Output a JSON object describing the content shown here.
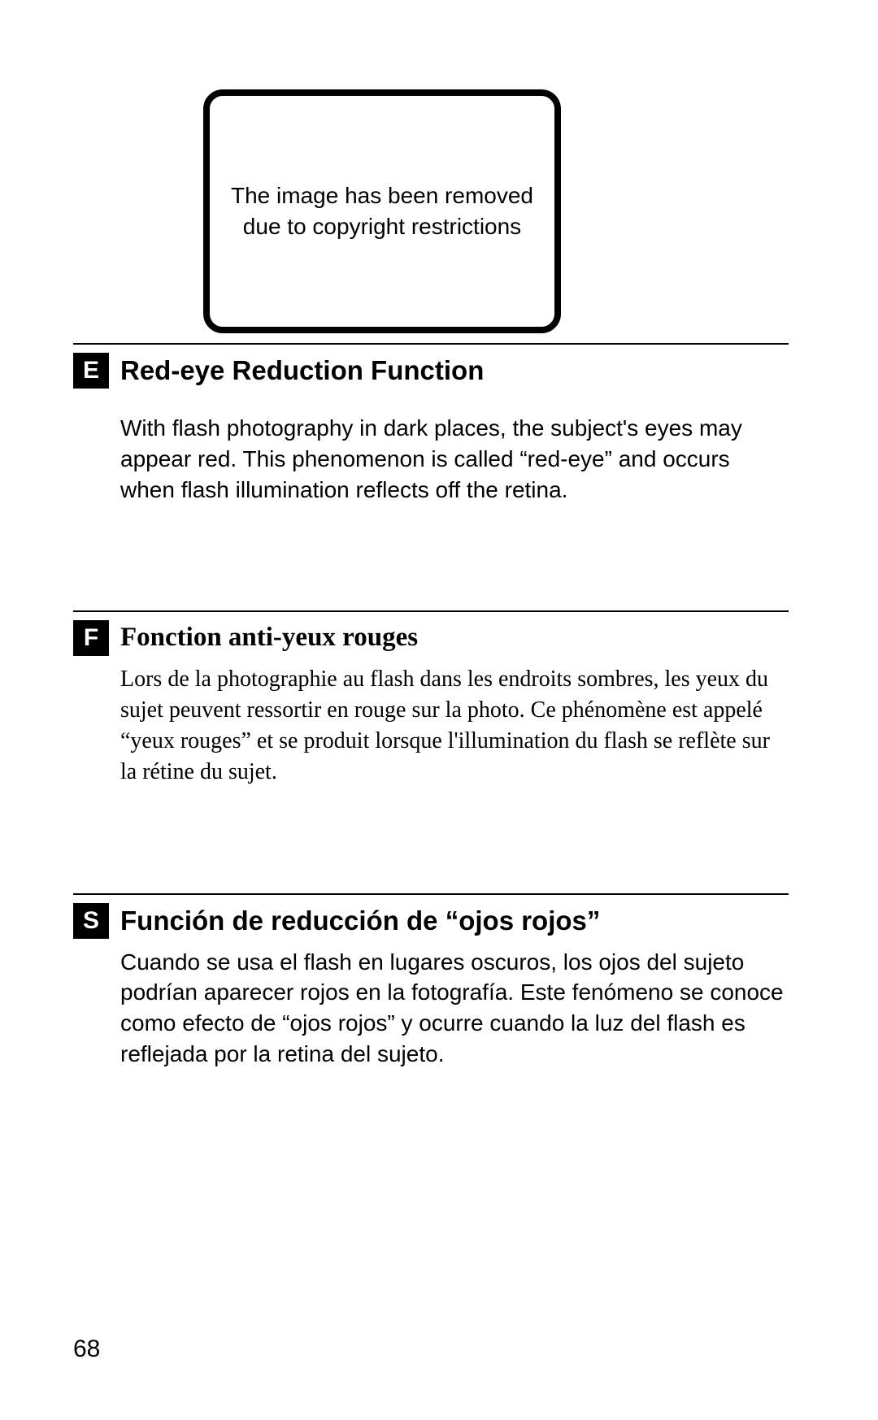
{
  "placeholder_text": "The image has been removed due to copyright restrictions",
  "sections": [
    {
      "lang_letter": "E",
      "title": "Red-eye Reduction Function",
      "body": "With flash photography in dark places, the subject's eyes may appear red. This phenomenon is called “red-eye” and occurs when flash illumination reflects off the retina.",
      "serif": false
    },
    {
      "lang_letter": "F",
      "title": "Fonction anti-yeux rouges",
      "body": "Lors de la photographie au flash dans les endroits sombres, les yeux du sujet peuvent ressortir en rouge sur la photo. Ce phénomène est appelé “yeux rouges” et se produit lorsque l'illumination du flash se reflète sur la rétine du sujet.",
      "serif": true
    },
    {
      "lang_letter": "S",
      "title": "Función de reducción de “ojos rojos”",
      "body": "Cuando se usa el flash en lugares oscuros, los ojos del sujeto podrían aparecer rojos en la fotografía. Este fenómeno se conoce como efecto de “ojos rojos” y ocurre cuando la luz del flash es reflejada por la retina del sujeto.",
      "serif": false
    }
  ],
  "page_number": "68",
  "colors": {
    "background": "#ffffff",
    "text": "#000000",
    "badge_bg": "#000000",
    "badge_fg": "#ffffff",
    "rule": "#000000",
    "placeholder_border": "#000000"
  },
  "typography": {
    "body_fontsize": 28,
    "heading_fontsize": 33,
    "badge_fontsize": 30,
    "placeholder_fontsize": 28,
    "page_number_fontsize": 30
  }
}
